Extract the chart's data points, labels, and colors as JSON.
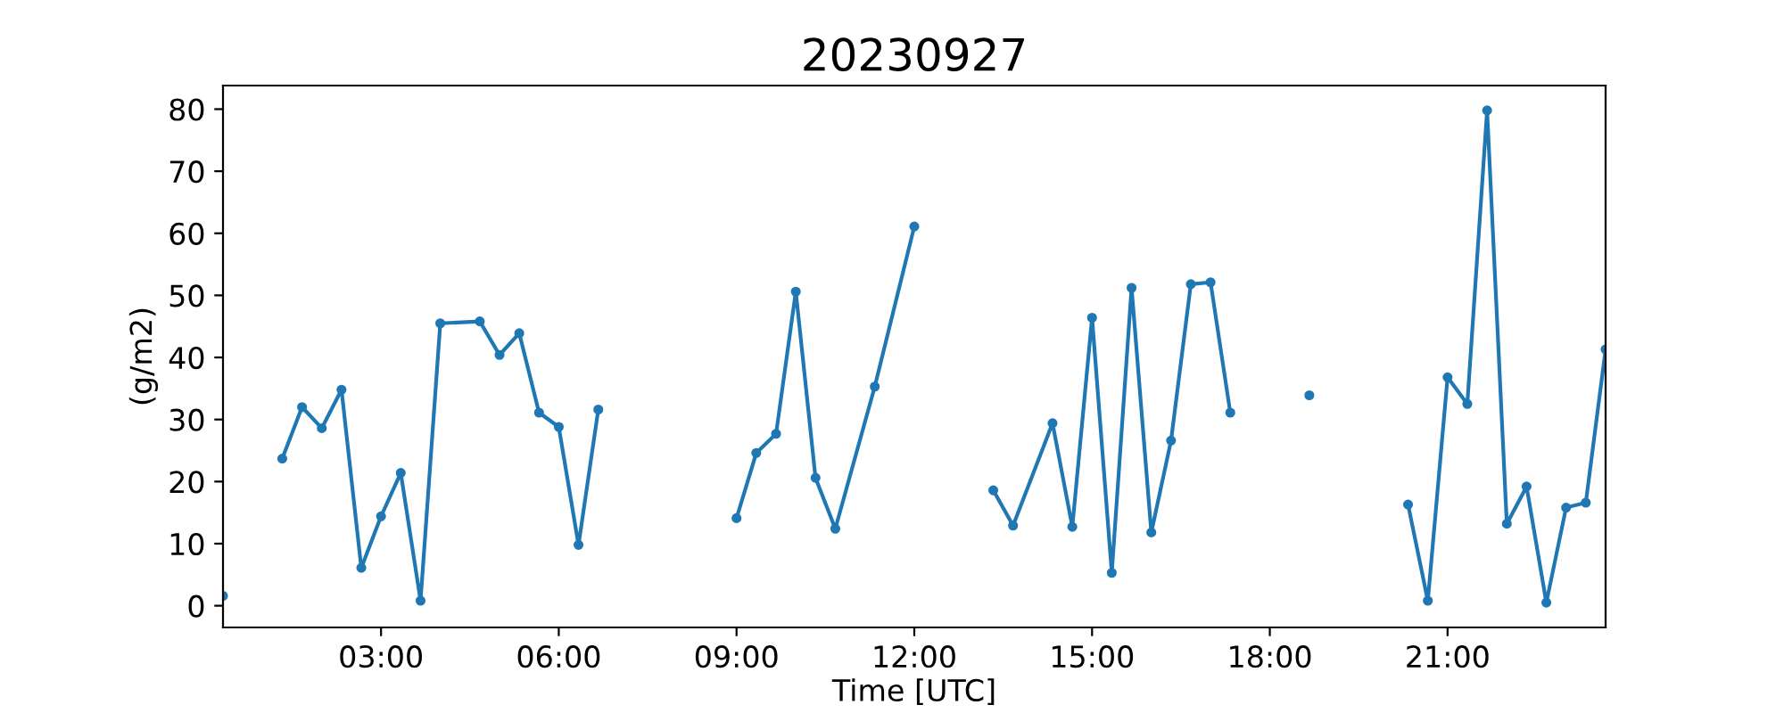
{
  "chart_data": {
    "type": "line",
    "title": "20230927",
    "xlabel": "Time [UTC]",
    "ylabel": "(g/m2)",
    "x": [
      0.333,
      0.667,
      1.333,
      1.667,
      2.0,
      2.333,
      2.667,
      3.0,
      3.333,
      3.667,
      4.0,
      4.667,
      5.0,
      5.333,
      5.667,
      6.0,
      6.333,
      6.667,
      7.0,
      9.0,
      9.333,
      9.667,
      10.0,
      10.333,
      10.667,
      11.333,
      12.0,
      12.333,
      13.333,
      13.667,
      14.333,
      14.667,
      15.0,
      15.333,
      15.667,
      16.0,
      16.333,
      16.667,
      17.0,
      17.333,
      17.667,
      18.667,
      19.0,
      20.333,
      20.667,
      21.0,
      21.333,
      21.667,
      22.0,
      22.333,
      22.667,
      23.0,
      23.333,
      23.667
    ],
    "series": [
      {
        "color": "#1f77b4",
        "values": [
          1.6,
          null,
          23.7,
          32.0,
          28.6,
          34.8,
          6.1,
          14.4,
          21.4,
          0.8,
          45.5,
          45.8,
          40.4,
          43.9,
          31.1,
          28.8,
          9.8,
          31.6,
          null,
          14.1,
          24.6,
          27.7,
          50.6,
          20.6,
          12.4,
          35.3,
          61.1,
          null,
          18.6,
          12.9,
          29.4,
          12.7,
          46.4,
          5.3,
          51.2,
          11.8,
          26.6,
          51.8,
          52.1,
          31.1,
          null,
          33.9,
          null,
          16.3,
          0.8,
          36.8,
          32.5,
          79.8,
          13.2,
          19.2,
          0.5,
          15.8,
          16.6,
          41.3
        ]
      }
    ],
    "xlim": [
      0.333,
      23.667
    ],
    "xticks": [
      {
        "value": 3,
        "label": "03:00"
      },
      {
        "value": 6,
        "label": "06:00"
      },
      {
        "value": 9,
        "label": "09:00"
      },
      {
        "value": 12,
        "label": "12:00"
      },
      {
        "value": 15,
        "label": "15:00"
      },
      {
        "value": 18,
        "label": "18:00"
      },
      {
        "value": 21,
        "label": "21:00"
      }
    ],
    "ylim": [
      -3.5,
      83.8
    ],
    "yticks": [
      0,
      10,
      20,
      30,
      40,
      50,
      60,
      70,
      80
    ],
    "marker": "circle",
    "line_style": "solid",
    "grid": false
  }
}
